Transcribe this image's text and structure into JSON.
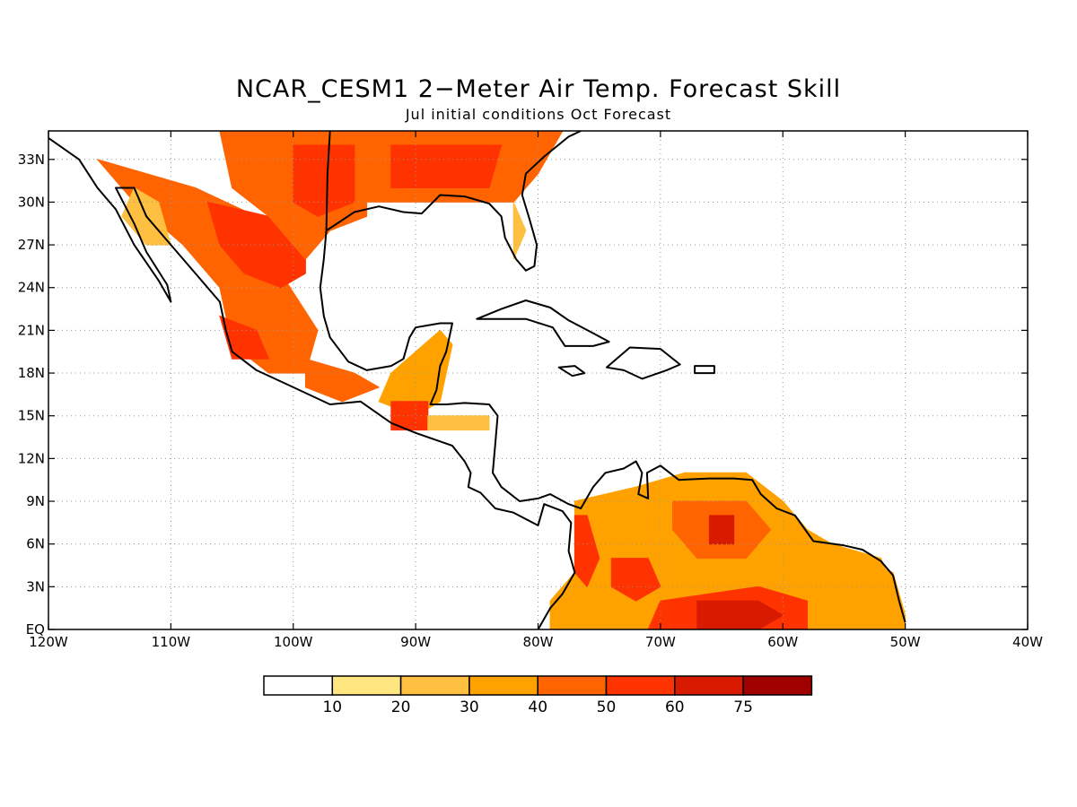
{
  "title": "NCAR_CESM1 2−Meter Air Temp. Forecast Skill",
  "subtitle": "Jul initial conditions  Oct Forecast",
  "map": {
    "lon_range": [
      -120,
      -40
    ],
    "lat_range": [
      0,
      35
    ],
    "gridlines": "dotted",
    "x_ticks": [
      "120W",
      "110W",
      "100W",
      "90W",
      "80W",
      "70W",
      "60W",
      "50W",
      "40W"
    ],
    "y_ticks": [
      "EQ",
      "3N",
      "6N",
      "9N",
      "12N",
      "15N",
      "18N",
      "21N",
      "24N",
      "27N",
      "30N",
      "33N"
    ]
  },
  "colorbar": {
    "labels": [
      "10",
      "20",
      "30",
      "40",
      "50",
      "60",
      "75"
    ],
    "colors": [
      "#ffffff",
      "#ffe680",
      "#ffbf40",
      "#ffa200",
      "#ff6400",
      "#ff3300",
      "#d81a00",
      "#a00000"
    ]
  },
  "regions": [
    {
      "name": "western-mexico",
      "c": 4,
      "pts": [
        [
          -116,
          33
        ],
        [
          -108,
          31
        ],
        [
          -103,
          29
        ],
        [
          -101,
          25
        ],
        [
          -98,
          21
        ],
        [
          -99,
          18
        ],
        [
          -102,
          18
        ],
        [
          -105,
          20
        ],
        [
          -106,
          24
        ],
        [
          -109,
          27
        ],
        [
          -113,
          30
        ]
      ]
    },
    {
      "name": "mexico-core",
      "c": 5,
      "pts": [
        [
          -107,
          30
        ],
        [
          -102,
          29
        ],
        [
          -99,
          27
        ],
        [
          -99,
          25
        ],
        [
          -101,
          24
        ],
        [
          -104,
          25
        ],
        [
          -106,
          27
        ]
      ]
    },
    {
      "name": "mexico-south",
      "c": 5,
      "pts": [
        [
          -106,
          22
        ],
        [
          -103,
          21
        ],
        [
          -102,
          19
        ],
        [
          -105,
          19
        ]
      ]
    },
    {
      "name": "baja",
      "c": 2,
      "pts": [
        [
          -113,
          31
        ],
        [
          -111,
          30
        ],
        [
          -110,
          27
        ],
        [
          -112,
          27
        ],
        [
          -114,
          29
        ]
      ]
    },
    {
      "name": "texas",
      "c": 4,
      "pts": [
        [
          -106,
          35
        ],
        [
          -94,
          35
        ],
        [
          -94,
          29
        ],
        [
          -97,
          28
        ],
        [
          -99,
          26
        ],
        [
          -102,
          29
        ],
        [
          -105,
          31
        ]
      ]
    },
    {
      "name": "texas-core",
      "c": 5,
      "pts": [
        [
          -100,
          34
        ],
        [
          -95,
          34
        ],
        [
          -95,
          30
        ],
        [
          -98,
          29
        ],
        [
          -100,
          30
        ]
      ]
    },
    {
      "name": "southeast-us",
      "c": 4,
      "pts": [
        [
          -94,
          35
        ],
        [
          -78,
          35
        ],
        [
          -80,
          32
        ],
        [
          -82,
          30
        ],
        [
          -85,
          30
        ],
        [
          -89,
          30
        ],
        [
          -94,
          30
        ]
      ]
    },
    {
      "name": "southeast-core",
      "c": 5,
      "pts": [
        [
          -92,
          34
        ],
        [
          -83,
          34
        ],
        [
          -84,
          31
        ],
        [
          -88,
          31
        ],
        [
          -92,
          31
        ]
      ]
    },
    {
      "name": "florida",
      "c": 2,
      "pts": [
        [
          -82,
          30
        ],
        [
          -81,
          28
        ],
        [
          -82,
          26
        ],
        [
          -82,
          27
        ]
      ]
    },
    {
      "name": "yucatan",
      "c": 3,
      "pts": [
        [
          -92,
          18
        ],
        [
          -88,
          21
        ],
        [
          -87,
          20
        ],
        [
          -88,
          16
        ],
        [
          -90,
          15
        ],
        [
          -93,
          16
        ]
      ]
    },
    {
      "name": "guatemala",
      "c": 5,
      "pts": [
        [
          -92,
          16
        ],
        [
          -89,
          16
        ],
        [
          -89,
          14
        ],
        [
          -92,
          14
        ]
      ]
    },
    {
      "name": "honduras",
      "c": 2,
      "pts": [
        [
          -89,
          15
        ],
        [
          -84,
          15
        ],
        [
          -84,
          14
        ],
        [
          -89,
          14
        ]
      ]
    },
    {
      "name": "mexico-southeast",
      "c": 4,
      "pts": [
        [
          -99,
          19
        ],
        [
          -95,
          18
        ],
        [
          -93,
          17
        ],
        [
          -96,
          16
        ],
        [
          -99,
          17
        ]
      ]
    },
    {
      "name": "northern-south-america",
      "c": 3,
      "pts": [
        [
          -77,
          9
        ],
        [
          -72,
          10
        ],
        [
          -68,
          11
        ],
        [
          -63,
          11
        ],
        [
          -60,
          9
        ],
        [
          -57,
          6
        ],
        [
          -54,
          5
        ],
        [
          -51,
          4
        ],
        [
          -50,
          1
        ],
        [
          -50,
          0
        ],
        [
          -79,
          0
        ],
        [
          -79,
          2
        ],
        [
          -77,
          4
        ]
      ]
    },
    {
      "name": "colombia-coast",
      "c": 5,
      "pts": [
        [
          -77,
          8
        ],
        [
          -76,
          8
        ],
        [
          -75,
          5
        ],
        [
          -76,
          3
        ],
        [
          -77,
          4
        ]
      ]
    },
    {
      "name": "venezuela-core",
      "c": 4,
      "pts": [
        [
          -69,
          9
        ],
        [
          -63,
          9
        ],
        [
          -61,
          7
        ],
        [
          -63,
          5
        ],
        [
          -67,
          5
        ],
        [
          -69,
          7
        ]
      ]
    },
    {
      "name": "guianas",
      "c": 3,
      "pts": [
        [
          -60,
          8
        ],
        [
          -56,
          6
        ],
        [
          -52,
          5
        ],
        [
          -51,
          3
        ],
        [
          -56,
          3
        ],
        [
          -60,
          5
        ]
      ]
    },
    {
      "name": "colombia-core",
      "c": 5,
      "pts": [
        [
          -74,
          5
        ],
        [
          -71,
          5
        ],
        [
          -70,
          3
        ],
        [
          -72,
          2
        ],
        [
          -74,
          3
        ]
      ]
    },
    {
      "name": "amazon-north",
      "c": 5,
      "pts": [
        [
          -70,
          2
        ],
        [
          -62,
          3
        ],
        [
          -58,
          2
        ],
        [
          -58,
          0
        ],
        [
          -71,
          0
        ]
      ]
    },
    {
      "name": "amazon-core",
      "c": 6,
      "pts": [
        [
          -67,
          2
        ],
        [
          -62,
          2
        ],
        [
          -60,
          1
        ],
        [
          -62,
          0
        ],
        [
          -67,
          0
        ]
      ]
    },
    {
      "name": "venezuela-patch",
      "c": 6,
      "pts": [
        [
          -66,
          8
        ],
        [
          -64,
          8
        ],
        [
          -64,
          6
        ],
        [
          -66,
          6
        ]
      ]
    }
  ],
  "coastlines": [
    [
      [
        -120,
        34.5
      ],
      [
        -117.5,
        33
      ],
      [
        -116,
        31
      ],
      [
        -114.5,
        29.5
      ],
      [
        -113,
        27
      ],
      [
        -111,
        24.5
      ],
      [
        -110,
        23
      ],
      [
        -110.3,
        24.2
      ],
      [
        -112,
        26.5
      ],
      [
        -113,
        28.5
      ],
      [
        -114.5,
        31
      ],
      [
        -113,
        31
      ],
      [
        -112,
        29
      ],
      [
        -110,
        27
      ],
      [
        -108,
        25
      ],
      [
        -106,
        23
      ],
      [
        -105.5,
        21
      ],
      [
        -105,
        19.5
      ],
      [
        -103,
        18.2
      ],
      [
        -100,
        17
      ],
      [
        -97,
        15.8
      ],
      [
        -94.5,
        16
      ],
      [
        -92,
        14.5
      ],
      [
        -90,
        13.8
      ],
      [
        -88,
        13.2
      ],
      [
        -87,
        12.9
      ],
      [
        -86,
        11.8
      ],
      [
        -85.5,
        11
      ],
      [
        -85.7,
        10
      ],
      [
        -84.7,
        9.6
      ],
      [
        -83.5,
        8.5
      ],
      [
        -82,
        8.2
      ],
      [
        -80,
        7.3
      ],
      [
        -79.5,
        8.8
      ],
      [
        -78,
        8.3
      ],
      [
        -77.3,
        7.5
      ],
      [
        -77.5,
        5.5
      ],
      [
        -77,
        4
      ],
      [
        -78,
        2.5
      ],
      [
        -79,
        1.5
      ],
      [
        -80,
        0
      ]
    ],
    [
      [
        -97,
        35
      ],
      [
        -97.2,
        32
      ],
      [
        -97.3,
        28
      ],
      [
        -97.5,
        26
      ],
      [
        -97.8,
        24
      ],
      [
        -97.5,
        22
      ],
      [
        -97,
        20.5
      ],
      [
        -95.5,
        18.8
      ],
      [
        -94,
        18.2
      ],
      [
        -92,
        18.5
      ],
      [
        -91,
        19
      ],
      [
        -90.5,
        20.5
      ],
      [
        -90,
        21.2
      ],
      [
        -88,
        21.5
      ],
      [
        -87,
        21.5
      ],
      [
        -87.5,
        19.5
      ],
      [
        -88,
        18.5
      ],
      [
        -88.3,
        16.8
      ],
      [
        -88.8,
        15.8
      ],
      [
        -87.5,
        15.8
      ],
      [
        -86,
        15.9
      ],
      [
        -84,
        15.8
      ],
      [
        -83.3,
        15
      ],
      [
        -83.5,
        13
      ],
      [
        -83.7,
        11
      ],
      [
        -83,
        10
      ],
      [
        -81.5,
        9
      ],
      [
        -80,
        9.2
      ],
      [
        -79,
        9.5
      ],
      [
        -77.5,
        8.8
      ],
      [
        -76.5,
        8.5
      ],
      [
        -75.5,
        10
      ],
      [
        -74.5,
        11
      ],
      [
        -73,
        11.3
      ],
      [
        -72,
        11.8
      ],
      [
        -71.5,
        11
      ],
      [
        -71.8,
        9.5
      ],
      [
        -71,
        9.2
      ],
      [
        -71.1,
        11
      ],
      [
        -70,
        11.5
      ],
      [
        -68.5,
        10.5
      ],
      [
        -66,
        10.6
      ],
      [
        -64,
        10.6
      ],
      [
        -62.5,
        10.5
      ],
      [
        -61.8,
        9.5
      ],
      [
        -60.5,
        8.5
      ],
      [
        -59,
        8
      ],
      [
        -57.5,
        6.2
      ],
      [
        -55,
        5.9
      ],
      [
        -53.5,
        5.6
      ],
      [
        -52,
        4.8
      ],
      [
        -51,
        3.8
      ],
      [
        -50.5,
        2
      ],
      [
        -50,
        0.5
      ]
    ],
    [
      [
        -97.3,
        28
      ],
      [
        -95,
        29.3
      ],
      [
        -93,
        29.7
      ],
      [
        -91,
        29.3
      ],
      [
        -89.5,
        29.2
      ],
      [
        -88,
        30.5
      ],
      [
        -86,
        30.4
      ],
      [
        -84,
        29.9
      ],
      [
        -83,
        29
      ],
      [
        -82.7,
        27.5
      ],
      [
        -81.8,
        26
      ],
      [
        -81,
        25.2
      ],
      [
        -80.3,
        25.5
      ],
      [
        -80.1,
        27
      ],
      [
        -80.7,
        28.8
      ],
      [
        -81.3,
        30.5
      ],
      [
        -81,
        32
      ],
      [
        -79.5,
        33.2
      ],
      [
        -77.5,
        34.6
      ],
      [
        -76.5,
        35
      ]
    ]
  ],
  "islands": [
    [
      [
        -85,
        21.8
      ],
      [
        -83,
        22.5
      ],
      [
        -81,
        23.1
      ],
      [
        -79,
        22.6
      ],
      [
        -77.5,
        21.7
      ],
      [
        -75.5,
        20.8
      ],
      [
        -74.2,
        20.2
      ],
      [
        -75.5,
        19.9
      ],
      [
        -77.8,
        19.9
      ],
      [
        -78.8,
        21.2
      ],
      [
        -81,
        21.8
      ],
      [
        -83,
        21.8
      ]
    ],
    [
      [
        -74.4,
        18.4
      ],
      [
        -72.5,
        19.8
      ],
      [
        -70,
        19.7
      ],
      [
        -68.4,
        18.6
      ],
      [
        -69.5,
        18.2
      ],
      [
        -71.5,
        17.6
      ],
      [
        -73,
        18.2
      ]
    ],
    [
      [
        -78.3,
        18.4
      ],
      [
        -77,
        18.5
      ],
      [
        -76.2,
        18
      ],
      [
        -77.2,
        17.8
      ]
    ],
    [
      [
        -67.2,
        18.5
      ],
      [
        -65.6,
        18.5
      ],
      [
        -65.6,
        18
      ],
      [
        -67.2,
        18
      ]
    ]
  ]
}
